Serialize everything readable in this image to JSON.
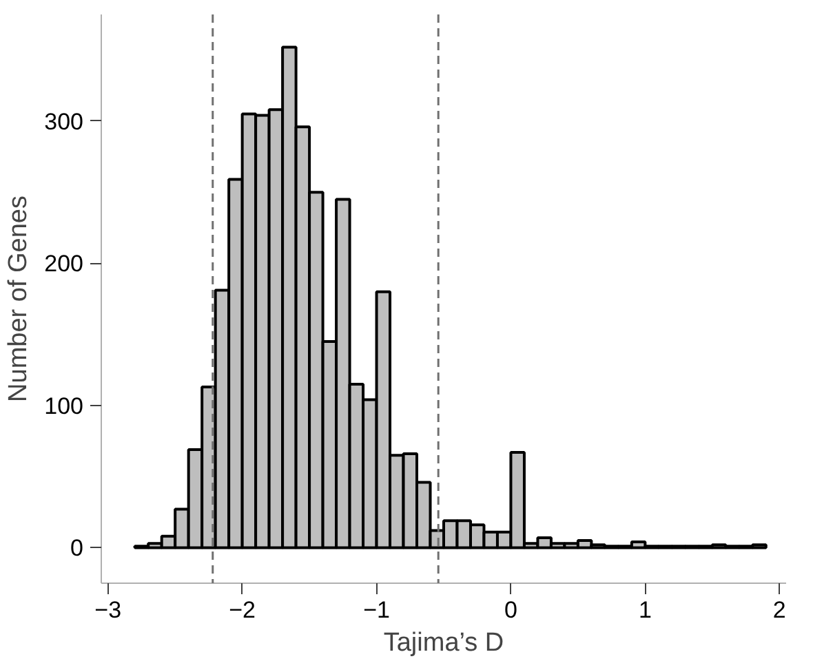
{
  "chart_data": {
    "type": "histogram",
    "xlabel": "Tajima’s D",
    "ylabel": "Number of Genes",
    "bins": [
      -2.8,
      -2.7,
      -2.6,
      -2.5,
      -2.4,
      -2.3,
      -2.2,
      -2.1,
      -2.0,
      -1.9,
      -1.8,
      -1.7,
      -1.6,
      -1.5,
      -1.4,
      -1.3,
      -1.2,
      -1.1,
      -1.0,
      -0.9,
      -0.8,
      -0.7,
      -0.6,
      -0.5,
      -0.4,
      -0.3,
      -0.2,
      -0.1,
      0.0,
      0.1,
      0.2,
      0.3,
      0.4,
      0.5,
      0.6,
      0.7,
      0.8,
      0.9,
      1.0,
      1.1,
      1.2,
      1.3,
      1.4,
      1.5,
      1.6,
      1.7,
      1.8,
      1.9
    ],
    "values": [
      1,
      3,
      8,
      27,
      69,
      113,
      181,
      259,
      305,
      304,
      308,
      352,
      296,
      250,
      145,
      245,
      115,
      104,
      180,
      65,
      66,
      46,
      12,
      19,
      19,
      16,
      11,
      11,
      67,
      3,
      7,
      3,
      3,
      5,
      2,
      1,
      1,
      4,
      1,
      1,
      1,
      1,
      1,
      2,
      1,
      1,
      2
    ],
    "color": "#bebebe",
    "xlim": [
      -3.05,
      2.05
    ],
    "ylim": [
      -25,
      375
    ],
    "xticks": [
      -3,
      -2,
      -1,
      0,
      1,
      2
    ],
    "yticks": [
      0,
      100,
      200,
      300
    ],
    "grid": false,
    "ref_lines": [
      {
        "axis": "x",
        "value": -2.22,
        "color": "#707070",
        "line_style": "dashed"
      },
      {
        "axis": "x",
        "value": -0.54,
        "color": "#707070",
        "line_style": "dashed"
      }
    ]
  }
}
